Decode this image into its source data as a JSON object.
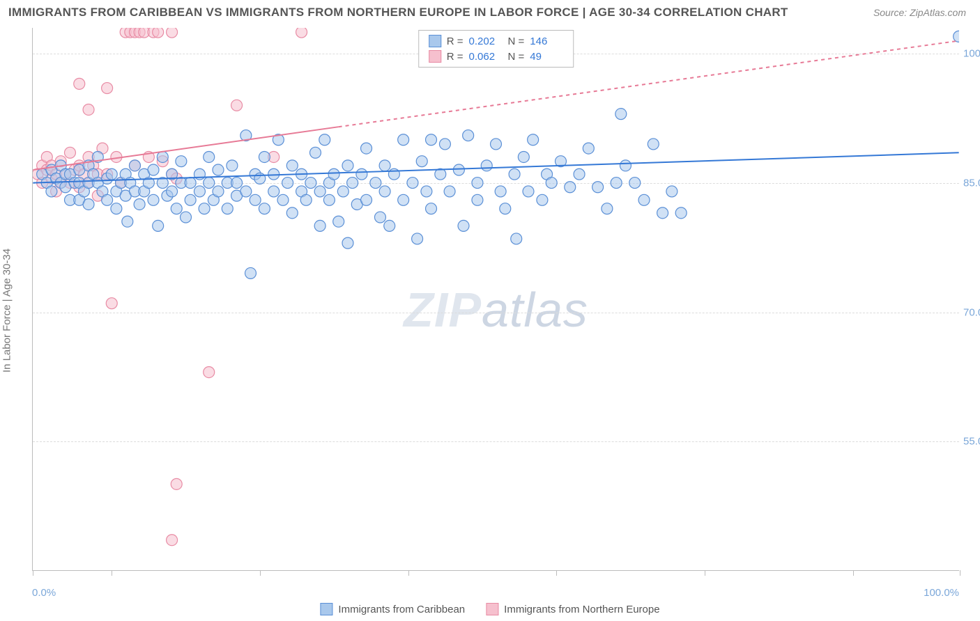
{
  "title": "IMMIGRANTS FROM CARIBBEAN VS IMMIGRANTS FROM NORTHERN EUROPE IN LABOR FORCE | AGE 30-34 CORRELATION CHART",
  "source": "Source: ZipAtlas.com",
  "ylabel": "In Labor Force | Age 30-34",
  "watermark_a": "ZIP",
  "watermark_b": "atlas",
  "chart": {
    "type": "scatter",
    "xlim": [
      0,
      100
    ],
    "ylim": [
      40,
      103
    ],
    "xticks_at": [
      0,
      8.5,
      24.5,
      40.5,
      56.5,
      72.5,
      88.5,
      100
    ],
    "xtick_labels": {
      "0": "0.0%",
      "100": "100.0%"
    },
    "yticks": [
      55,
      70,
      85,
      100
    ],
    "ytick_labels": {
      "55": "55.0%",
      "70": "70.0%",
      "85": "85.0%",
      "100": "100.0%"
    },
    "grid_color": "#dcdcdc",
    "axis_color": "#bcbcbc",
    "label_color": "#7ba7d9",
    "marker_radius": 8,
    "marker_opacity": 0.55,
    "series": [
      {
        "name": "Immigrants from Caribbean",
        "fill": "#a9c8ec",
        "stroke": "#5a8fd6",
        "line_color": "#3478d6",
        "stats": {
          "R": "0.202",
          "N": "146"
        },
        "trend": {
          "x1": 0,
          "y1": 85.0,
          "x2": 100,
          "y2": 88.5
        },
        "points": [
          [
            1,
            86
          ],
          [
            1.5,
            85
          ],
          [
            2,
            86.5
          ],
          [
            2,
            84
          ],
          [
            2.5,
            85.5
          ],
          [
            3,
            87
          ],
          [
            3,
            85
          ],
          [
            3.5,
            86
          ],
          [
            3.5,
            84.5
          ],
          [
            4,
            86
          ],
          [
            4,
            83
          ],
          [
            4.5,
            85
          ],
          [
            5,
            86.5
          ],
          [
            5,
            85
          ],
          [
            5,
            83
          ],
          [
            5.5,
            84
          ],
          [
            6,
            87
          ],
          [
            6,
            85
          ],
          [
            6,
            82.5
          ],
          [
            6.5,
            86
          ],
          [
            7,
            85
          ],
          [
            7,
            88
          ],
          [
            7.5,
            84
          ],
          [
            8,
            85.5
          ],
          [
            8,
            83
          ],
          [
            8.5,
            86
          ],
          [
            9,
            84
          ],
          [
            9,
            82
          ],
          [
            9.5,
            85
          ],
          [
            10,
            86
          ],
          [
            10,
            83.5
          ],
          [
            10.2,
            80.5
          ],
          [
            10.5,
            85
          ],
          [
            11,
            87
          ],
          [
            11,
            84
          ],
          [
            11.5,
            82.5
          ],
          [
            12,
            86
          ],
          [
            12,
            84
          ],
          [
            12.5,
            85
          ],
          [
            13,
            83
          ],
          [
            13,
            86.5
          ],
          [
            13.5,
            80
          ],
          [
            14,
            85
          ],
          [
            14,
            88
          ],
          [
            14.5,
            83.5
          ],
          [
            15,
            86
          ],
          [
            15,
            84
          ],
          [
            15.5,
            82
          ],
          [
            16,
            85
          ],
          [
            16,
            87.5
          ],
          [
            16.5,
            81
          ],
          [
            17,
            83
          ],
          [
            17,
            85
          ],
          [
            18,
            86
          ],
          [
            18,
            84
          ],
          [
            18.5,
            82
          ],
          [
            19,
            88
          ],
          [
            19,
            85
          ],
          [
            19.5,
            83
          ],
          [
            20,
            86.5
          ],
          [
            20,
            84
          ],
          [
            21,
            82
          ],
          [
            21,
            85
          ],
          [
            21.5,
            87
          ],
          [
            22,
            83.5
          ],
          [
            22,
            85
          ],
          [
            23,
            90.5
          ],
          [
            23,
            84
          ],
          [
            23.5,
            74.5
          ],
          [
            24,
            86
          ],
          [
            24,
            83
          ],
          [
            24.5,
            85.5
          ],
          [
            25,
            88
          ],
          [
            25,
            82
          ],
          [
            26,
            84
          ],
          [
            26,
            86
          ],
          [
            26.5,
            90
          ],
          [
            27,
            83
          ],
          [
            27.5,
            85
          ],
          [
            28,
            87
          ],
          [
            28,
            81.5
          ],
          [
            29,
            84
          ],
          [
            29,
            86
          ],
          [
            29.5,
            83
          ],
          [
            30,
            85
          ],
          [
            30.5,
            88.5
          ],
          [
            31,
            84
          ],
          [
            31,
            80
          ],
          [
            31.5,
            90
          ],
          [
            32,
            83
          ],
          [
            32,
            85
          ],
          [
            32.5,
            86
          ],
          [
            33,
            80.5
          ],
          [
            33.5,
            84
          ],
          [
            34,
            87
          ],
          [
            34,
            78
          ],
          [
            34.5,
            85
          ],
          [
            35,
            82.5
          ],
          [
            35.5,
            86
          ],
          [
            36,
            89
          ],
          [
            36,
            83
          ],
          [
            37,
            85
          ],
          [
            37.5,
            81
          ],
          [
            38,
            87
          ],
          [
            38,
            84
          ],
          [
            38.5,
            80
          ],
          [
            39,
            86
          ],
          [
            40,
            83
          ],
          [
            40,
            90
          ],
          [
            41,
            85
          ],
          [
            41.5,
            78.5
          ],
          [
            42,
            87.5
          ],
          [
            42.5,
            84
          ],
          [
            43,
            90
          ],
          [
            43,
            82
          ],
          [
            44,
            86
          ],
          [
            44.5,
            89.5
          ],
          [
            45,
            84
          ],
          [
            46,
            86.5
          ],
          [
            46.5,
            80
          ],
          [
            47,
            90.5
          ],
          [
            48,
            85
          ],
          [
            48,
            83
          ],
          [
            49,
            87
          ],
          [
            50,
            89.5
          ],
          [
            50.5,
            84
          ],
          [
            51,
            82
          ],
          [
            52,
            86
          ],
          [
            52.2,
            78.5
          ],
          [
            53,
            88
          ],
          [
            53.5,
            84
          ],
          [
            54,
            90
          ],
          [
            55,
            83
          ],
          [
            55.5,
            86
          ],
          [
            56,
            85
          ],
          [
            57,
            87.5
          ],
          [
            58,
            84.5
          ],
          [
            59,
            86
          ],
          [
            60,
            89
          ],
          [
            61,
            84.5
          ],
          [
            62,
            82
          ],
          [
            63,
            85
          ],
          [
            63.5,
            93
          ],
          [
            64,
            87
          ],
          [
            65,
            85
          ],
          [
            66,
            83
          ],
          [
            67,
            89.5
          ],
          [
            68,
            81.5
          ],
          [
            69,
            84
          ],
          [
            70,
            81.5
          ],
          [
            100,
            102
          ]
        ]
      },
      {
        "name": "Immigrants from Northern Europe",
        "fill": "#f6c0ce",
        "stroke": "#e88ba4",
        "line_color": "#e77a96",
        "stats": {
          "R": "0.062",
          "N": "49"
        },
        "trend_solid": {
          "x1": 0,
          "y1": 86.5,
          "x2": 33,
          "y2": 91.5
        },
        "trend_dashed": {
          "x1": 33,
          "y1": 91.5,
          "x2": 100,
          "y2": 101.5
        },
        "points": [
          [
            0.5,
            86
          ],
          [
            1,
            87
          ],
          [
            1,
            85
          ],
          [
            1.5,
            86.5
          ],
          [
            1.5,
            88
          ],
          [
            2,
            85.5
          ],
          [
            2,
            87
          ],
          [
            2.5,
            86
          ],
          [
            2.5,
            84
          ],
          [
            3,
            87.5
          ],
          [
            3,
            85
          ],
          [
            3.5,
            86
          ],
          [
            4,
            88.5
          ],
          [
            4,
            85
          ],
          [
            4.5,
            86.5
          ],
          [
            5,
            87
          ],
          [
            5,
            84.5
          ],
          [
            5,
            96.5
          ],
          [
            5.5,
            86
          ],
          [
            6,
            88
          ],
          [
            6,
            85
          ],
          [
            6,
            93.5
          ],
          [
            6.5,
            87
          ],
          [
            7,
            86
          ],
          [
            7,
            83.5
          ],
          [
            7.5,
            89
          ],
          [
            8,
            86
          ],
          [
            8,
            96
          ],
          [
            8.5,
            71
          ],
          [
            9,
            88
          ],
          [
            9.5,
            85
          ],
          [
            10,
            102.5
          ],
          [
            10.5,
            102.5
          ],
          [
            11,
            87
          ],
          [
            11,
            102.5
          ],
          [
            11.5,
            102.5
          ],
          [
            12,
            102.5
          ],
          [
            12.5,
            88
          ],
          [
            13,
            102.5
          ],
          [
            13.5,
            102.5
          ],
          [
            14,
            87.5
          ],
          [
            15,
            102.5
          ],
          [
            15,
            86
          ],
          [
            15.5,
            50
          ],
          [
            15,
            43.5
          ],
          [
            15.5,
            85.5
          ],
          [
            19,
            63
          ],
          [
            22,
            94
          ],
          [
            26,
            88
          ],
          [
            29,
            102.5
          ]
        ]
      }
    ]
  }
}
